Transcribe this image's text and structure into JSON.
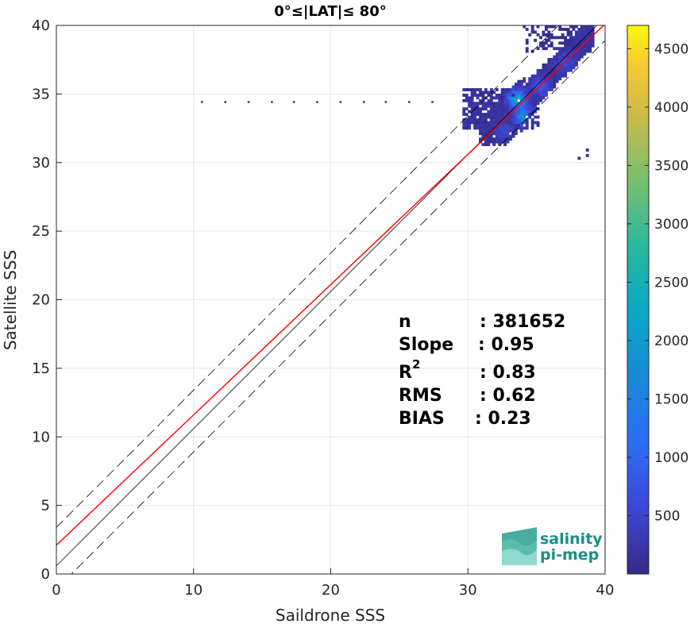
{
  "chart_data": {
    "type": "heatmap",
    "title": "0°≤|LAT|≤ 80°",
    "xlabel": "Saildrone SSS",
    "ylabel": "Satellite SSS",
    "xlim": [
      0,
      40
    ],
    "ylim": [
      0,
      40
    ],
    "xticks": [
      0,
      10,
      20,
      30,
      40
    ],
    "yticks": [
      0,
      5,
      10,
      15,
      20,
      25,
      30,
      35,
      40
    ],
    "grid": true,
    "colorbar": {
      "colormap": "parula",
      "range": [
        0,
        4700
      ],
      "ticks": [
        500,
        1000,
        1500,
        2000,
        2500,
        3000,
        3500,
        4000,
        4500
      ]
    },
    "lines": [
      {
        "kind": "identity",
        "color": "#000000",
        "style": "solid",
        "slope": 1,
        "intercept": 0.6
      },
      {
        "kind": "upper-bound",
        "color": "#000000",
        "style": "dashed",
        "slope": 1,
        "intercept": 3.4
      },
      {
        "kind": "lower-bound",
        "color": "#000000",
        "style": "dashed",
        "slope": 1,
        "intercept": -1.1
      },
      {
        "kind": "regression",
        "color": "#ff0000",
        "style": "solid",
        "slope": 0.95,
        "intercept": 2.1
      }
    ],
    "clusters": [
      {
        "x": 33.5,
        "y": 34.5,
        "count": 2600
      },
      {
        "x": 34.0,
        "y": 33.2,
        "count": 1900
      },
      {
        "x": 35.2,
        "y": 35.4,
        "count": 900
      },
      {
        "x": 37.0,
        "y": 37.2,
        "count": 600
      },
      {
        "x": 32.5,
        "y": 32.2,
        "count": 500
      }
    ],
    "outlier_row": {
      "y": 34.4,
      "x": [
        10.6,
        12.3,
        14.0,
        15.7,
        17.3,
        19.0,
        20.7,
        22.4,
        24.0,
        25.7,
        27.4
      ]
    },
    "stats": {
      "n_label": "n",
      "n_value": ": 381652",
      "slope_label": "Slope",
      "slope_value": ": 0.95",
      "r2_label": "R",
      "r2_sup": "2",
      "r2_value": ": 0.83",
      "rms_label": "RMS",
      "rms_value": ": 0.62",
      "bias_label": "BIAS",
      "bias_value": ": 0.23"
    }
  },
  "logo": {
    "line1": "salinity",
    "line2": "pi-mep",
    "color": "#1a8f86"
  }
}
